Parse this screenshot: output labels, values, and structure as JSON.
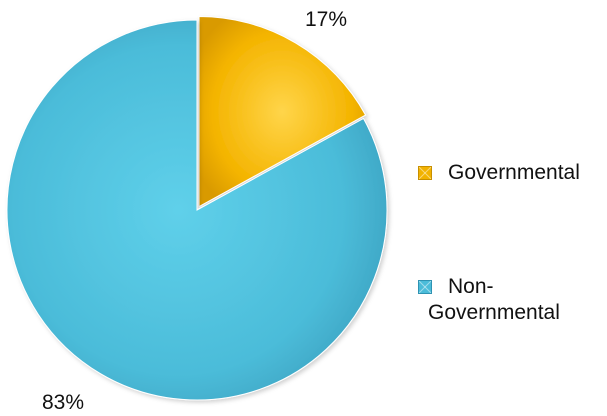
{
  "chart_data": {
    "type": "pie",
    "title": "",
    "categories": [
      "Governmental",
      "Non-Governmental"
    ],
    "values": [
      17,
      83
    ],
    "data_labels": [
      "17%",
      "83%"
    ],
    "legend": {
      "placement": "right",
      "entries": [
        "Governmental",
        "Non-\nGovernmental"
      ]
    },
    "colors": {
      "Governmental": "#F2B200",
      "Non-Governmental": "#4BBCD9"
    },
    "start_angle_deg": 0,
    "direction": "clockwise",
    "exploded_slice": "Governmental"
  }
}
